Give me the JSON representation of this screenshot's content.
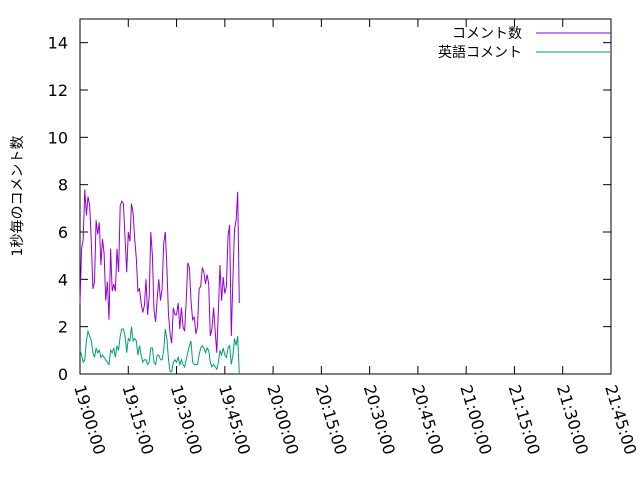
{
  "chart_data": {
    "type": "line",
    "title": "",
    "xlabel": "",
    "ylabel": "1秒毎のコメント数",
    "ylim": [
      0,
      15
    ],
    "yticks": [
      0,
      2,
      4,
      6,
      8,
      10,
      12,
      14
    ],
    "x_start": "19:00:00",
    "x_step_seconds": 30,
    "xlim": [
      "19:00:00",
      "21:45:00"
    ],
    "xticks": [
      "19:00:00",
      "19:15:00",
      "19:30:00",
      "19:45:00",
      "20:00:00",
      "20:15:00",
      "20:30:00",
      "20:45:00",
      "21:00:00",
      "21:15:00",
      "21:30:00",
      "21:45:00"
    ],
    "grid": false,
    "legend": "top-right",
    "series": [
      {
        "name": "コメント数",
        "color": "#9400d3",
        "values": [
          3.0,
          5.3,
          5.7,
          7.8,
          6.7,
          7.5,
          7.1,
          5.6,
          3.6,
          3.9,
          6.5,
          5.9,
          6.4,
          4.6,
          5.7,
          5.1,
          3.1,
          3.9,
          2.3,
          5.3,
          3.5,
          3.8,
          3.5,
          5.3,
          4.3,
          7.1,
          7.3,
          7.2,
          5.7,
          4.3,
          6.0,
          5.6,
          7.2,
          6.8,
          5.7,
          4.9,
          3.5,
          3.6,
          3.0,
          2.6,
          2.9,
          4.0,
          2.5,
          3.3,
          6.0,
          5.0,
          2.7,
          2.2,
          3.2,
          4.0,
          3.1,
          3.6,
          5.5,
          6.0,
          4.5,
          2.5,
          1.7,
          1.3,
          2.8,
          2.5,
          2.5,
          3.0,
          1.9,
          2.8,
          2.0,
          1.8,
          3.1,
          4.7,
          4.5,
          3.1,
          2.3,
          2.4,
          1.7,
          2.0,
          3.6,
          3.7,
          4.5,
          4.3,
          3.8,
          4.2,
          3.8,
          1.6,
          1.9,
          2.8,
          1.8,
          0.9,
          2.7,
          4.6,
          3.1,
          4.1,
          3.4,
          3.7,
          5.8,
          6.3,
          1.6,
          4.0,
          6.1,
          6.5,
          7.7,
          3.0
        ]
      },
      {
        "name": "英語コメント",
        "color": "#009e73",
        "values": [
          1.0,
          0.8,
          0.5,
          0.6,
          1.4,
          1.8,
          1.6,
          1.4,
          0.9,
          0.7,
          1.1,
          0.9,
          1.0,
          0.7,
          0.8,
          0.7,
          0.6,
          0.5,
          0.4,
          1.0,
          0.9,
          1.1,
          0.7,
          1.2,
          1.0,
          1.6,
          1.9,
          1.9,
          1.6,
          0.9,
          1.5,
          1.4,
          2.0,
          1.4,
          1.5,
          1.4,
          0.8,
          1.2,
          0.8,
          0.5,
          0.6,
          0.6,
          0.4,
          0.5,
          1.1,
          1.1,
          0.5,
          0.4,
          0.8,
          0.8,
          0.6,
          0.6,
          1.0,
          1.9,
          1.5,
          0.6,
          0.1,
          0.1,
          0.5,
          0.6,
          0.5,
          0.7,
          0.4,
          0.6,
          0.4,
          0.3,
          0.6,
          0.9,
          1.2,
          1.4,
          0.5,
          0.4,
          0.4,
          0.4,
          0.8,
          1.1,
          1.2,
          1.1,
          0.9,
          1.1,
          1.0,
          0.5,
          0.3,
          0.4,
          0.3,
          0.2,
          0.5,
          1.0,
          0.8,
          1.1,
          0.8,
          0.7,
          1.1,
          1.2,
          0.4,
          0.8,
          1.5,
          1.2,
          1.6,
          0.0
        ]
      }
    ]
  }
}
